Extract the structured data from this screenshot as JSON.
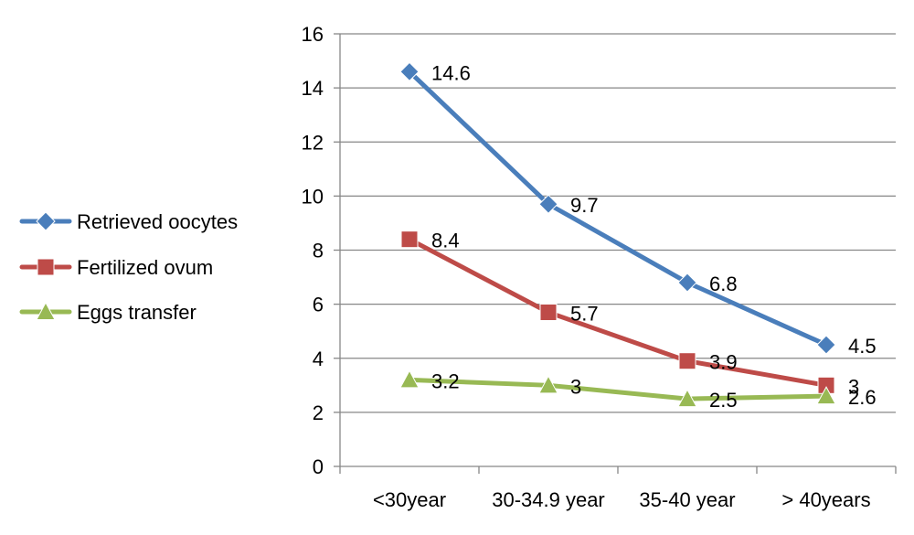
{
  "chart_data": {
    "type": "line",
    "title": "",
    "xlabel": "",
    "ylabel": "",
    "categories": [
      "<30year",
      "30-34.9 year",
      "35-40 year",
      "> 40years"
    ],
    "ylim": [
      0,
      16
    ],
    "yticks": [
      0,
      2,
      4,
      6,
      8,
      10,
      12,
      14,
      16
    ],
    "grid": true,
    "legend_position": "left",
    "series": [
      {
        "name": "Retrieved oocytes",
        "values": [
          14.6,
          9.7,
          6.8,
          4.5
        ],
        "labels": [
          "14.6",
          "9.7",
          "6.8",
          "4.5"
        ],
        "color": "#4a7ebb",
        "marker": "diamond"
      },
      {
        "name": "Fertilized ovum",
        "values": [
          8.4,
          5.7,
          3.9,
          3
        ],
        "labels": [
          "8.4",
          "5.7",
          "3.9",
          "3"
        ],
        "color": "#be4b48",
        "marker": "square"
      },
      {
        "name": "Eggs transfer",
        "values": [
          3.2,
          3,
          2.5,
          2.6
        ],
        "labels": [
          "3.2",
          "3",
          "2.5",
          "2.6"
        ],
        "color": "#98b954",
        "marker": "triangle"
      }
    ]
  }
}
